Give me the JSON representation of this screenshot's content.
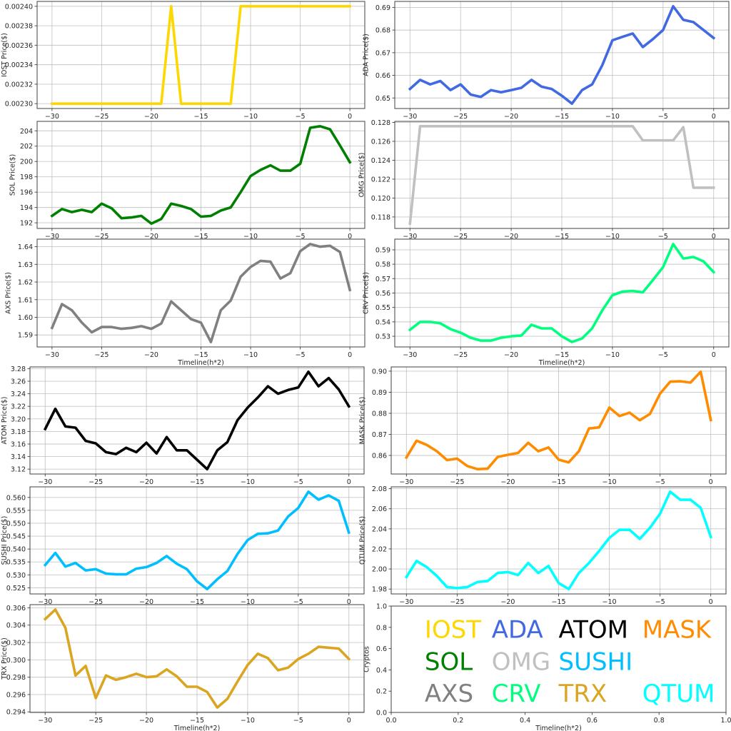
{
  "chart_data": [
    {
      "id": "iost",
      "type": "line",
      "ylabel": "IOST Price($)",
      "xlabel": "",
      "color": "#FFD700",
      "x": [
        -30,
        -29,
        -28,
        -27,
        -26,
        -25,
        -24,
        -23,
        -22,
        -21,
        -20,
        -19,
        -18,
        -17,
        -16,
        -15,
        -14,
        -13,
        -12,
        -11,
        -10,
        -9,
        -8,
        -7,
        -6,
        -5,
        -4,
        -3,
        -2,
        -1,
        0
      ],
      "values": [
        0.0023,
        0.0023,
        0.0023,
        0.0023,
        0.0023,
        0.0023,
        0.0023,
        0.0023,
        0.0023,
        0.0023,
        0.0023,
        0.0023,
        0.0024,
        0.0023,
        0.0023,
        0.0023,
        0.0023,
        0.0023,
        0.0023,
        0.0024,
        0.0024,
        0.0024,
        0.0024,
        0.0024,
        0.0024,
        0.0024,
        0.0024,
        0.0024,
        0.0024,
        0.0024,
        0.0024
      ],
      "xticks": [
        "−30",
        "−25",
        "−20",
        "−15",
        "−10",
        "−5",
        "0"
      ],
      "yticks": [
        "0.00230",
        "0.00232",
        "0.00234",
        "0.00236",
        "0.00238",
        "0.00240"
      ]
    },
    {
      "id": "sol",
      "type": "line",
      "ylabel": "SOL Price($)",
      "xlabel": "",
      "color": "#008000",
      "x": [
        -30,
        -29,
        -28,
        -27,
        -26,
        -25,
        -24,
        -23,
        -22,
        -21,
        -20,
        -19,
        -18,
        -17,
        -16,
        -15,
        -14,
        -13,
        -12,
        -11,
        -10,
        -9,
        -8,
        -7,
        -6,
        -5,
        -4,
        -3,
        -2,
        -1,
        0
      ],
      "values": [
        192.9,
        193.8,
        193.4,
        193.7,
        193.4,
        194.5,
        193.9,
        192.6,
        192.7,
        192.9,
        191.9,
        192.5,
        194.5,
        194.2,
        193.8,
        192.8,
        192.9,
        193.6,
        194.0,
        196.0,
        198.1,
        198.9,
        199.5,
        198.8,
        198.8,
        199.7,
        204.4,
        204.6,
        204.2,
        202.1,
        199.9
      ],
      "xticks": [
        "−30",
        "−25",
        "−20",
        "−15",
        "−10",
        "−5",
        "0"
      ],
      "yticks": [
        "192",
        "194",
        "196",
        "198",
        "200",
        "202",
        "204"
      ]
    },
    {
      "id": "axs",
      "type": "line",
      "ylabel": "AXS Price($)",
      "xlabel": "Timeline(h*2)",
      "color": "#808080",
      "x": [
        -30,
        -29,
        -28,
        -27,
        -26,
        -25,
        -24,
        -23,
        -22,
        -21,
        -20,
        -19,
        -18,
        -17,
        -16,
        -15,
        -14,
        -13,
        -12,
        -11,
        -10,
        -9,
        -8,
        -7,
        -6,
        -5,
        -4,
        -3,
        -2,
        -1,
        0
      ],
      "values": [
        1.594,
        1.6075,
        1.604,
        1.597,
        1.5915,
        1.5945,
        1.5945,
        1.5935,
        1.594,
        1.595,
        1.5935,
        1.5965,
        1.609,
        1.604,
        1.599,
        1.597,
        1.586,
        1.604,
        1.6095,
        1.623,
        1.6285,
        1.632,
        1.6315,
        1.622,
        1.625,
        1.6375,
        1.6415,
        1.64,
        1.6405,
        1.637,
        1.6155
      ],
      "xticks": [
        "−30",
        "−25",
        "−20",
        "−15",
        "−10",
        "−5",
        "0"
      ],
      "yticks": [
        "1.59",
        "1.60",
        "1.61",
        "1.62",
        "1.63",
        "1.64"
      ]
    },
    {
      "id": "ada",
      "type": "line",
      "ylabel": "ADA  Price($)",
      "xlabel": "",
      "color": "#4169E1",
      "x": [
        -30,
        -29,
        -28,
        -27,
        -26,
        -25,
        -24,
        -23,
        -22,
        -21,
        -20,
        -19,
        -18,
        -17,
        -16,
        -15,
        -14,
        -13,
        -12,
        -11,
        -10,
        -9,
        -8,
        -7,
        -6,
        -5,
        -4,
        -3,
        -2,
        -1,
        0
      ],
      "values": [
        0.654,
        0.658,
        0.656,
        0.6575,
        0.6535,
        0.656,
        0.6515,
        0.6505,
        0.6535,
        0.6525,
        0.6535,
        0.6545,
        0.658,
        0.655,
        0.654,
        0.651,
        0.6475,
        0.6535,
        0.656,
        0.6645,
        0.6755,
        0.677,
        0.6785,
        0.6725,
        0.676,
        0.68,
        0.6905,
        0.6845,
        0.6835,
        0.68,
        0.6765
      ],
      "xticks": [
        "−30",
        "−25",
        "−20",
        "−15",
        "−10",
        "−5",
        "0"
      ],
      "yticks": [
        "0.65",
        "0.66",
        "0.67",
        "0.68",
        "0.69"
      ]
    },
    {
      "id": "omg",
      "type": "line",
      "ylabel": "OMG  Price($)",
      "xlabel": "",
      "color": "#C0C0C0",
      "x": [
        -30,
        -29,
        -28,
        -27,
        -26,
        -25,
        -24,
        -23,
        -22,
        -21,
        -20,
        -19,
        -18,
        -17,
        -16,
        -15,
        -14,
        -13,
        -12,
        -11,
        -10,
        -9,
        -8,
        -7,
        -6,
        -5,
        -4,
        -3,
        -2,
        -1,
        0
      ],
      "values": [
        0.1173,
        0.1276,
        0.1276,
        0.1276,
        0.1276,
        0.1276,
        0.1276,
        0.1276,
        0.1276,
        0.1276,
        0.1276,
        0.1276,
        0.1276,
        0.1276,
        0.1276,
        0.1276,
        0.1276,
        0.1276,
        0.1276,
        0.1276,
        0.1276,
        0.1276,
        0.1276,
        0.1261,
        0.1261,
        0.1261,
        0.1261,
        0.1275,
        0.1211,
        0.1211,
        0.1211
      ],
      "xticks": [
        "−30",
        "−25",
        "−20",
        "−15",
        "−10",
        "−5",
        "0"
      ],
      "yticks": [
        "0.118",
        "0.120",
        "0.122",
        "0.124",
        "0.126",
        "0.128"
      ]
    },
    {
      "id": "crv",
      "type": "line",
      "ylabel": "CRV  Price($)",
      "xlabel": "Timeline(h*2)",
      "color": "#00FF7F",
      "x": [
        -30,
        -29,
        -28,
        -27,
        -26,
        -25,
        -24,
        -23,
        -22,
        -21,
        -20,
        -19,
        -18,
        -17,
        -16,
        -15,
        -14,
        -13,
        -12,
        -11,
        -10,
        -9,
        -8,
        -7,
        -6,
        -5,
        -4,
        -3,
        -2,
        -1,
        0
      ],
      "values": [
        0.5345,
        0.54,
        0.54,
        0.539,
        0.535,
        0.5325,
        0.529,
        0.527,
        0.527,
        0.529,
        0.53,
        0.5305,
        0.538,
        0.5355,
        0.5355,
        0.53,
        0.526,
        0.5285,
        0.5355,
        0.548,
        0.5585,
        0.561,
        0.5615,
        0.5605,
        0.569,
        0.578,
        0.594,
        0.584,
        0.585,
        0.582,
        0.5745
      ],
      "xticks": [
        "−30",
        "−25",
        "−20",
        "−15",
        "−10",
        "−5",
        "0"
      ],
      "yticks": [
        "0.53",
        "0.54",
        "0.55",
        "0.56",
        "0.57",
        "0.58",
        "0.59"
      ]
    },
    {
      "id": "atom",
      "type": "line",
      "ylabel": "ATOM  Price($)",
      "xlabel": "",
      "color": "#000000",
      "x": [
        -30,
        -29,
        -28,
        -27,
        -26,
        -25,
        -24,
        -23,
        -22,
        -21,
        -20,
        -19,
        -18,
        -17,
        -16,
        -15,
        -14,
        -13,
        -12,
        -11,
        -10,
        -9,
        -8,
        -7,
        -6,
        -5,
        -4,
        -3,
        -2,
        -1,
        0
      ],
      "values": [
        3.184,
        3.216,
        3.188,
        3.186,
        3.165,
        3.161,
        3.147,
        3.144,
        3.154,
        3.147,
        3.162,
        3.145,
        3.171,
        3.15,
        3.15,
        3.135,
        3.12,
        3.15,
        3.163,
        3.198,
        3.218,
        3.234,
        3.252,
        3.24,
        3.246,
        3.25,
        3.275,
        3.252,
        3.265,
        3.247,
        3.22
      ],
      "xticks": [
        "−30",
        "−25",
        "−20",
        "−15",
        "−10",
        "−5",
        "0"
      ],
      "yticks": [
        "3.12",
        "3.14",
        "3.16",
        "3.18",
        "3.20",
        "3.22",
        "3.24",
        "3.26",
        "3.28"
      ]
    },
    {
      "id": "sushi",
      "type": "line",
      "ylabel": "SUSHI  Price($)",
      "xlabel": "",
      "color": "#00BFFF",
      "x": [
        -30,
        -29,
        -28,
        -27,
        -26,
        -25,
        -24,
        -23,
        -22,
        -21,
        -20,
        -19,
        -18,
        -17,
        -16,
        -15,
        -14,
        -13,
        -12,
        -11,
        -10,
        -9,
        -8,
        -7,
        -6,
        -5,
        -4,
        -3,
        -2,
        -1,
        0
      ],
      "values": [
        0.5338,
        0.5385,
        0.5332,
        0.5346,
        0.5317,
        0.5322,
        0.5305,
        0.5302,
        0.5302,
        0.5324,
        0.533,
        0.5346,
        0.5373,
        0.5343,
        0.5322,
        0.5275,
        0.5245,
        0.5283,
        0.5315,
        0.5381,
        0.5435,
        0.5459,
        0.5461,
        0.5472,
        0.5526,
        0.5559,
        0.5622,
        0.5591,
        0.5608,
        0.5587,
        0.5464
      ],
      "xticks": [
        "−30",
        "−25",
        "−20",
        "−15",
        "−10",
        "−5",
        "0"
      ],
      "yticks": [
        "0.525",
        "0.530",
        "0.535",
        "0.540",
        "0.545",
        "0.550",
        "0.555",
        "0.560"
      ]
    },
    {
      "id": "trx",
      "type": "line",
      "ylabel": "TRX Price($)",
      "xlabel": "Timeline(h*2)",
      "color": "#DAA520",
      "x": [
        -30,
        -29,
        -28,
        -27,
        -26,
        -25,
        -24,
        -23,
        -22,
        -21,
        -20,
        -19,
        -18,
        -17,
        -16,
        -15,
        -14,
        -13,
        -12,
        -11,
        -10,
        -9,
        -8,
        -7,
        -6,
        -5,
        -4,
        -3,
        -2,
        -1,
        0
      ],
      "values": [
        0.3047,
        0.3058,
        0.3037,
        0.2982,
        0.2993,
        0.2956,
        0.2982,
        0.2977,
        0.298,
        0.2984,
        0.298,
        0.2981,
        0.2989,
        0.2981,
        0.2969,
        0.2969,
        0.2963,
        0.2945,
        0.2955,
        0.2975,
        0.2994,
        0.3007,
        0.3002,
        0.2988,
        0.2991,
        0.3001,
        0.3007,
        0.3015,
        0.3014,
        0.3013,
        0.3001
      ],
      "xticks": [
        "−30",
        "−25",
        "−20",
        "−15",
        "−10",
        "−5",
        "0"
      ],
      "yticks": [
        "0.294",
        "0.296",
        "0.298",
        "0.300",
        "0.302",
        "0.304",
        "0.306"
      ]
    },
    {
      "id": "mask",
      "type": "line",
      "ylabel": "MASK  Price($)",
      "xlabel": "",
      "color": "#FF8C00",
      "x": [
        -30,
        -29,
        -28,
        -27,
        -26,
        -25,
        -24,
        -23,
        -22,
        -21,
        -20,
        -19,
        -18,
        -17,
        -16,
        -15,
        -14,
        -13,
        -12,
        -11,
        -10,
        -9,
        -8,
        -7,
        -6,
        -5,
        -4,
        -3,
        -2,
        -1,
        0
      ],
      "values": [
        0.859,
        0.867,
        0.865,
        0.862,
        0.8578,
        0.8585,
        0.855,
        0.8535,
        0.8537,
        0.8593,
        0.8603,
        0.8612,
        0.866,
        0.862,
        0.8638,
        0.858,
        0.8567,
        0.862,
        0.8728,
        0.8733,
        0.8827,
        0.8787,
        0.8803,
        0.8767,
        0.8797,
        0.8893,
        0.895,
        0.8952,
        0.8946,
        0.8997,
        0.8768
      ],
      "xticks": [
        "−30",
        "−25",
        "−20",
        "−15",
        "−10",
        "−5",
        "0"
      ],
      "yticks": [
        "0.86",
        "0.87",
        "0.88",
        "0.89",
        "0.90"
      ]
    },
    {
      "id": "qtum",
      "type": "line",
      "ylabel": "QTUM Price($)",
      "xlabel": "",
      "color": "#00FFFF",
      "x": [
        -30,
        -29,
        -28,
        -27,
        -26,
        -25,
        -24,
        -23,
        -22,
        -21,
        -20,
        -19,
        -18,
        -17,
        -16,
        -15,
        -14,
        -13,
        -12,
        -11,
        -10,
        -9,
        -8,
        -7,
        -6,
        -5,
        -4,
        -3,
        -2,
        -1,
        0
      ],
      "values": [
        1.992,
        2.008,
        2.002,
        1.993,
        1.982,
        1.981,
        1.982,
        1.987,
        1.988,
        1.996,
        1.997,
        1.994,
        2.006,
        1.996,
        2.003,
        1.986,
        1.98,
        1.996,
        2.006,
        2.018,
        2.031,
        2.039,
        2.039,
        2.03,
        2.041,
        2.055,
        2.077,
        2.069,
        2.069,
        2.061,
        2.032
      ],
      "xticks": [
        "−30",
        "−25",
        "−20",
        "−15",
        "−10",
        "−5",
        "0"
      ],
      "yticks": [
        "1.98",
        "2.00",
        "2.02",
        "2.04",
        "2.06",
        "2.08"
      ]
    },
    {
      "id": "legend",
      "type": "text",
      "ylabel": "Cryptos",
      "xlabel": "Timeline(h*2)",
      "xlim": [
        0,
        1
      ],
      "ylim": [
        0,
        1
      ],
      "xticks": [
        "0.0",
        "0.2",
        "0.4",
        "0.6",
        "0.8",
        "1.0"
      ],
      "yticks": [
        "0.0",
        "0.2",
        "0.4",
        "0.6",
        "0.8",
        "1.0"
      ],
      "items": [
        {
          "text": "IOST",
          "color": "#FFD700",
          "pos": [
            0.1,
            0.7
          ]
        },
        {
          "text": "ADA",
          "color": "#4169E1",
          "pos": [
            0.3,
            0.7
          ]
        },
        {
          "text": "ATOM",
          "color": "#000000",
          "pos": [
            0.5,
            0.7
          ]
        },
        {
          "text": "MASK",
          "color": "#FF8C00",
          "pos": [
            0.75,
            0.7
          ]
        },
        {
          "text": "SOL",
          "color": "#008000",
          "pos": [
            0.1,
            0.4
          ]
        },
        {
          "text": "OMG",
          "color": "#C0C0C0",
          "pos": [
            0.3,
            0.4
          ]
        },
        {
          "text": "SUSHI",
          "color": "#00BFFF",
          "pos": [
            0.5,
            0.4
          ]
        },
        {
          "text": "AXS",
          "color": "#808080",
          "pos": [
            0.1,
            0.1
          ]
        },
        {
          "text": "CRV",
          "color": "#00FF7F",
          "pos": [
            0.3,
            0.1
          ]
        },
        {
          "text": "TRX",
          "color": "#DAA520",
          "pos": [
            0.5,
            0.1
          ]
        },
        {
          "text": "QTUM",
          "color": "#00FFFF",
          "pos": [
            0.75,
            0.1
          ]
        }
      ]
    }
  ]
}
